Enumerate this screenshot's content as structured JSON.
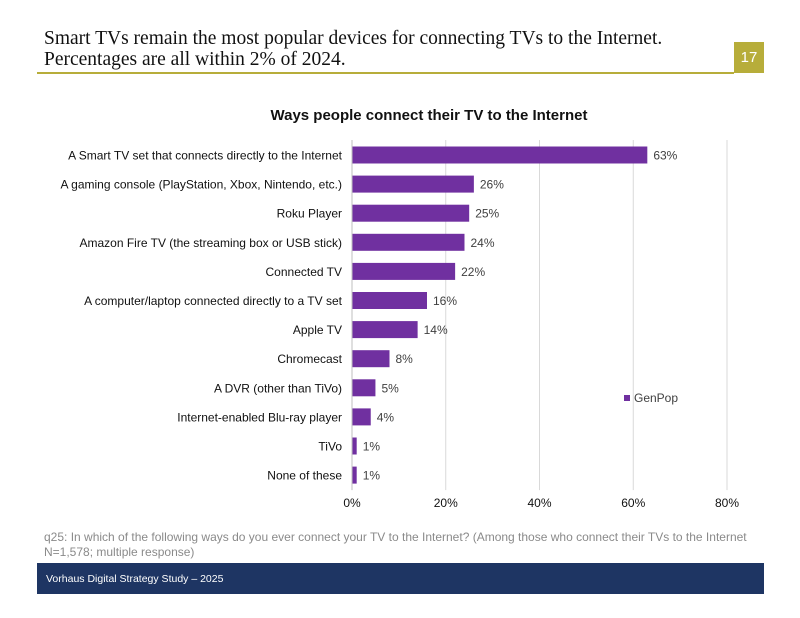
{
  "header": {
    "headline_line1": "Smart TVs remain the most popular devices for connecting TVs to the Internet.",
    "headline_line2": "Percentages are all within 2% of 2024.",
    "page_number": "17",
    "accent_color": "#b7ad3a"
  },
  "chart_data": {
    "type": "bar",
    "orientation": "horizontal",
    "title": "Ways people connect their TV to the Internet",
    "categories": [
      "A Smart TV set that connects directly to the Internet",
      "A gaming console (PlayStation, Xbox, Nintendo, etc.)",
      "Roku Player",
      "Amazon Fire TV (the streaming box or USB stick)",
      "Connected TV",
      "A computer/laptop connected directly to a TV set",
      "Apple TV",
      "Chromecast",
      "A DVR (other than TiVo)",
      "Internet-enabled Blu-ray player",
      "TiVo",
      "None of these"
    ],
    "series": [
      {
        "name": "GenPop",
        "color": "#7030a0",
        "values": [
          63,
          26,
          25,
          24,
          22,
          16,
          14,
          8,
          5,
          4,
          1,
          1
        ],
        "labels": [
          "63%",
          "26%",
          "25%",
          "24%",
          "22%",
          "16%",
          "14%",
          "8%",
          "5%",
          "4%",
          "1%",
          "1%"
        ]
      }
    ],
    "xlim": [
      0,
      80
    ],
    "xticks": [
      0,
      20,
      40,
      60,
      80
    ],
    "xtick_labels": [
      "0%",
      "20%",
      "40%",
      "60%",
      "80%"
    ],
    "grid": true,
    "legend": "right"
  },
  "footnote": {
    "line1": "q25: In which of the following ways do you ever connect your TV to the Internet? (Among those who connect their TVs to the Internet",
    "line2": "N=1,578; multiple response)"
  },
  "footer": {
    "text": "Vorhaus Digital Strategy Study – 2025",
    "color": "#1e3563"
  }
}
